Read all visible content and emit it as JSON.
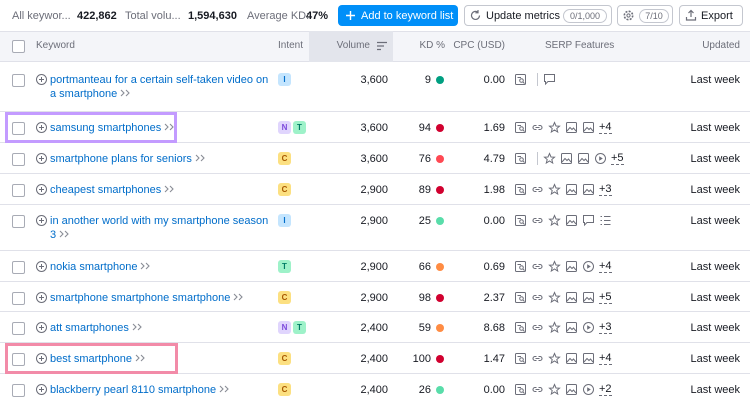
{
  "summary": {
    "all_label": "All keywor...",
    "all_value": "422,862",
    "volume_label": "Total volu...",
    "volume_value": "1,594,630",
    "kd_label": "Average KD:",
    "kd_value": "47%"
  },
  "toolbar": {
    "add": "Add to keyword list",
    "update": "Update metrics",
    "update_count": "0/1,000",
    "settings_count": "7/10",
    "export": "Export"
  },
  "table": {
    "columns": [
      "Keyword",
      "Intent",
      "Volume",
      "KD %",
      "CPC (USD)",
      "SERP Features",
      "Updated"
    ],
    "rows": [
      {
        "keyword": "portmanteau for a certain self-taken video on a smartphone",
        "intent": [
          "I"
        ],
        "volume": "3,600",
        "kd": "9",
        "kd_color": "#009f81",
        "cpc": "0.00",
        "updated": "Last week"
      },
      {
        "keyword": "samsung smartphones",
        "intent": [
          "N",
          "T"
        ],
        "volume": "3,600",
        "kd": "94",
        "kd_color": "#d1002f",
        "cpc": "1.69",
        "serp_more": "+4",
        "updated": "Last week"
      },
      {
        "keyword": "smartphone plans for seniors",
        "intent": [
          "C"
        ],
        "volume": "3,600",
        "kd": "76",
        "kd_color": "#ff4953",
        "cpc": "4.79",
        "serp_more": "+5",
        "updated": "Last week"
      },
      {
        "keyword": "cheapest smartphones",
        "intent": [
          "C"
        ],
        "volume": "2,900",
        "kd": "89",
        "kd_color": "#d1002f",
        "cpc": "1.98",
        "serp_more": "+3",
        "updated": "Last week"
      },
      {
        "keyword": "in another world with my smartphone season 3",
        "intent": [
          "I"
        ],
        "volume": "2,900",
        "kd": "25",
        "kd_color": "#59ddaa",
        "cpc": "0.00",
        "updated": "Last week"
      },
      {
        "keyword": "nokia smartphone",
        "intent": [
          "T"
        ],
        "volume": "2,900",
        "kd": "66",
        "kd_color": "#ff8c43",
        "cpc": "0.69",
        "serp_more": "+4",
        "updated": "Last week"
      },
      {
        "keyword": "smartphone smartphone smartphone",
        "intent": [
          "C"
        ],
        "volume": "2,900",
        "kd": "98",
        "kd_color": "#d1002f",
        "cpc": "2.37",
        "serp_more": "+5",
        "updated": "Last week"
      },
      {
        "keyword": "att smartphones",
        "intent": [
          "N",
          "T"
        ],
        "volume": "2,400",
        "kd": "59",
        "kd_color": "#ff8c43",
        "cpc": "8.68",
        "serp_more": "+3",
        "updated": "Last week"
      },
      {
        "keyword": "best smartphone",
        "intent": [
          "C"
        ],
        "volume": "2,400",
        "kd": "100",
        "kd_color": "#d1002f",
        "cpc": "1.47",
        "serp_more": "+4",
        "updated": "Last week"
      },
      {
        "keyword": "blackberry pearl 8110 smartphone",
        "intent": [
          "C"
        ],
        "volume": "2,400",
        "kd": "26",
        "kd_color": "#59ddaa",
        "cpc": "0.00",
        "serp_more": "+2",
        "updated": "Last week"
      }
    ]
  }
}
